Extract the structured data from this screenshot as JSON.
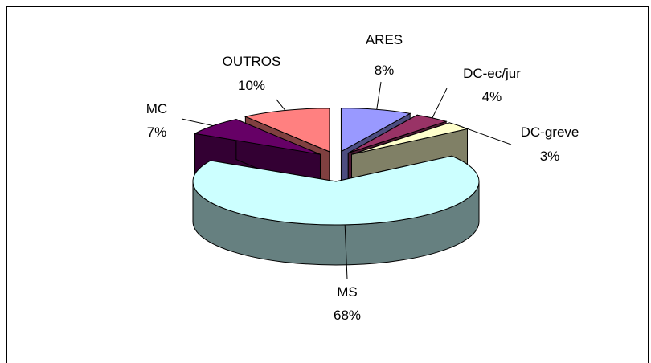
{
  "chart_data": {
    "type": "pie",
    "variant": "3d-exploded",
    "title": "",
    "slices": [
      {
        "label": "ARES",
        "value_label": "8%",
        "value": 8,
        "color": "#9999ff",
        "side_color": "#4d4d80"
      },
      {
        "label": "DC-ec/jur",
        "value_label": "4%",
        "value": 4,
        "color": "#993366",
        "side_color": "#4d1a33"
      },
      {
        "label": "DC-greve",
        "value_label": "3%",
        "value": 3,
        "color": "#ffffcc",
        "side_color": "#808066"
      },
      {
        "label": "MS",
        "value_label": "68%",
        "value": 68,
        "color": "#ccffff",
        "side_color": "#668080"
      },
      {
        "label": "MC",
        "value_label": "7%",
        "value": 7,
        "color": "#660066",
        "side_color": "#330033"
      },
      {
        "label": "OUTROS",
        "value_label": "10%",
        "value": 10,
        "color": "#ff8080",
        "side_color": "#804040"
      }
    ]
  }
}
